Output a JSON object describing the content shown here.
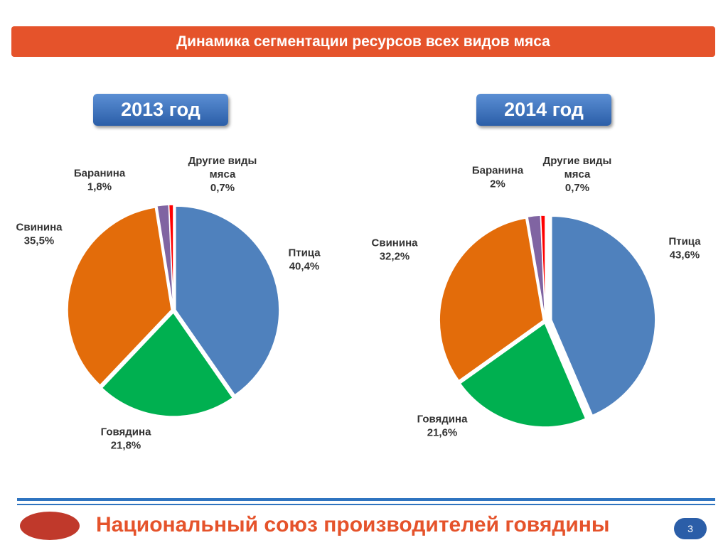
{
  "header": {
    "title": "Динамика сегментации ресурсов всех видов мяса"
  },
  "chart_data": [
    {
      "type": "pie",
      "title": "2013 год",
      "categories": [
        "Птица",
        "Говядина",
        "Свинина",
        "Баранина",
        "Другие виды мяса"
      ],
      "values": [
        40.4,
        21.8,
        35.5,
        1.8,
        0.7
      ],
      "value_labels": [
        "40,4%",
        "21,8%",
        "35,5%",
        "1,8%",
        "0,7%"
      ],
      "colors": [
        "#4f81bd",
        "#00b050",
        "#e36c0a",
        "#8064a2",
        "#ff0000"
      ]
    },
    {
      "type": "pie",
      "title": "2014 год",
      "categories": [
        "Птица",
        "Говядина",
        "Свинина",
        "Баранина",
        "Другие виды мяса"
      ],
      "values": [
        43.6,
        21.6,
        32.2,
        2,
        0.7
      ],
      "value_labels": [
        "43,6%",
        "21,6%",
        "32,2%",
        "2%",
        "0,7%"
      ],
      "colors": [
        "#4f81bd",
        "#00b050",
        "#e36c0a",
        "#8064a2",
        "#ff0000"
      ]
    }
  ],
  "footer": {
    "text": "Национальный союз производителей говядины",
    "page": "3"
  }
}
